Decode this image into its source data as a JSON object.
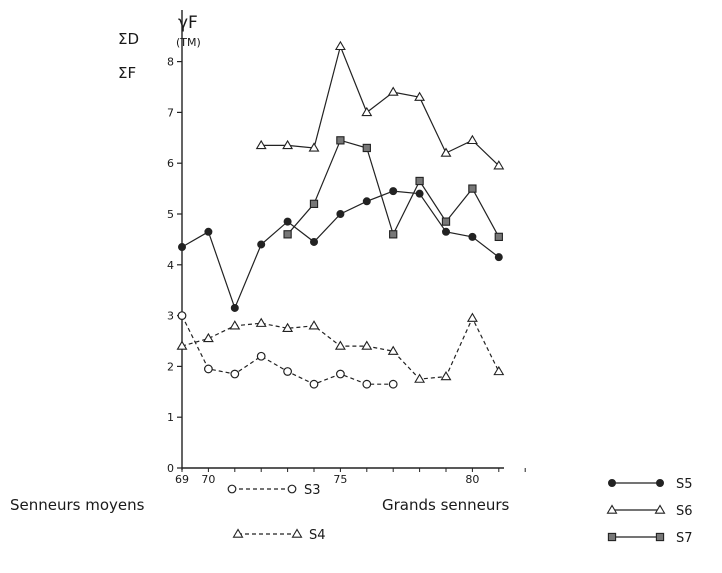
{
  "chart_data": {
    "type": "line",
    "y_axis_label": [
      "ΣD",
      "ΣF"
    ],
    "y_axis_title": "γF",
    "y_axis_unit": "(TM)",
    "x_tick_labels": [
      "69",
      "70",
      "75",
      "80"
    ],
    "y_tick_labels": [
      "0",
      "1",
      "2",
      "3",
      "4",
      "5",
      "6",
      "7",
      "8"
    ],
    "xlim": [
      69,
      82
    ],
    "ylim": [
      0,
      9
    ],
    "legend_groups": [
      {
        "title": "Senneurs moyens",
        "items": [
          "S3",
          "S4"
        ]
      },
      {
        "title": "Grands senneurs",
        "items": [
          "S5",
          "S6",
          "S7"
        ]
      }
    ],
    "series": [
      {
        "name": "S3",
        "line": "dashed",
        "marker": "circle-open",
        "x": [
          69,
          70,
          71,
          72,
          73,
          74,
          75,
          76,
          77
        ],
        "y": [
          3.0,
          1.95,
          1.85,
          2.2,
          1.9,
          1.65,
          1.85,
          1.65,
          1.65
        ]
      },
      {
        "name": "S4",
        "line": "dashed",
        "marker": "triangle-open",
        "x": [
          69,
          70,
          71,
          72,
          73,
          74,
          75,
          76,
          77,
          78,
          79,
          80,
          81
        ],
        "y": [
          2.4,
          2.55,
          2.8,
          2.85,
          2.75,
          2.8,
          2.4,
          2.4,
          2.3,
          1.75,
          1.8,
          2.95,
          1.9
        ]
      },
      {
        "name": "S5",
        "line": "solid",
        "marker": "circle-filled",
        "x": [
          69,
          70,
          71,
          72,
          73,
          74,
          75,
          76,
          77,
          78,
          79,
          80,
          81
        ],
        "y": [
          4.35,
          4.65,
          3.15,
          4.4,
          4.85,
          4.45,
          5.0,
          5.25,
          5.45,
          5.4,
          4.65,
          4.55,
          4.15
        ]
      },
      {
        "name": "S6",
        "line": "solid",
        "marker": "triangle-open",
        "x": [
          72,
          73,
          74,
          75,
          76,
          77,
          78,
          79,
          80,
          81
        ],
        "y": [
          6.35,
          6.35,
          6.3,
          8.3,
          7.0,
          7.4,
          7.3,
          6.2,
          6.45,
          5.95
        ]
      },
      {
        "name": "S7",
        "line": "solid",
        "marker": "square-hatched",
        "x": [
          73,
          74,
          75,
          76,
          77,
          78,
          79,
          80,
          81
        ],
        "y": [
          4.6,
          5.2,
          6.45,
          6.3,
          4.6,
          5.65,
          4.85,
          5.5,
          4.55
        ]
      }
    ]
  }
}
